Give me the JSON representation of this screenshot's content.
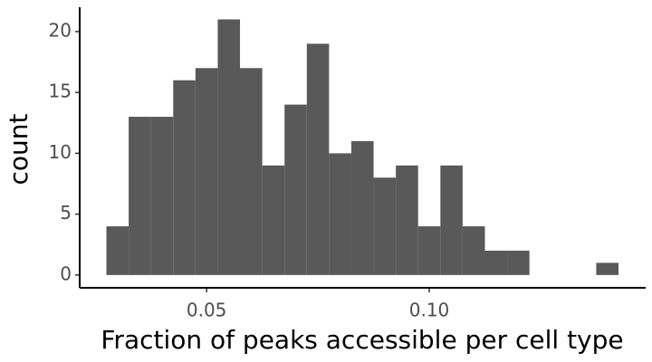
{
  "chart_data": {
    "type": "histogram",
    "xlabel": "Fraction of peaks accessible per cell type",
    "ylabel": "count",
    "bins": [
      0.0275,
      0.0325,
      0.0375,
      0.0425,
      0.0475,
      0.0525,
      0.0575,
      0.0625,
      0.0675,
      0.0725,
      0.0775,
      0.0825,
      0.0875,
      0.0925,
      0.0975,
      0.1025,
      0.1075,
      0.1125,
      0.1175,
      0.1225,
      0.1275,
      0.1325,
      0.1375,
      0.1425
    ],
    "values": [
      4,
      13,
      13,
      16,
      17,
      21,
      17,
      9,
      14,
      19,
      10,
      11,
      8,
      9,
      4,
      9,
      4,
      2,
      2,
      0,
      0,
      0,
      1
    ],
    "color": "#595959",
    "xlim": [
      0.0215,
      0.1486
    ],
    "ylim": [
      -1.05,
      22
    ],
    "xticks": [
      0.05,
      {
        "value": 0.1,
        "label": "0.10"
      }
    ],
    "yticks": [
      0,
      5,
      10,
      15,
      20
    ]
  }
}
